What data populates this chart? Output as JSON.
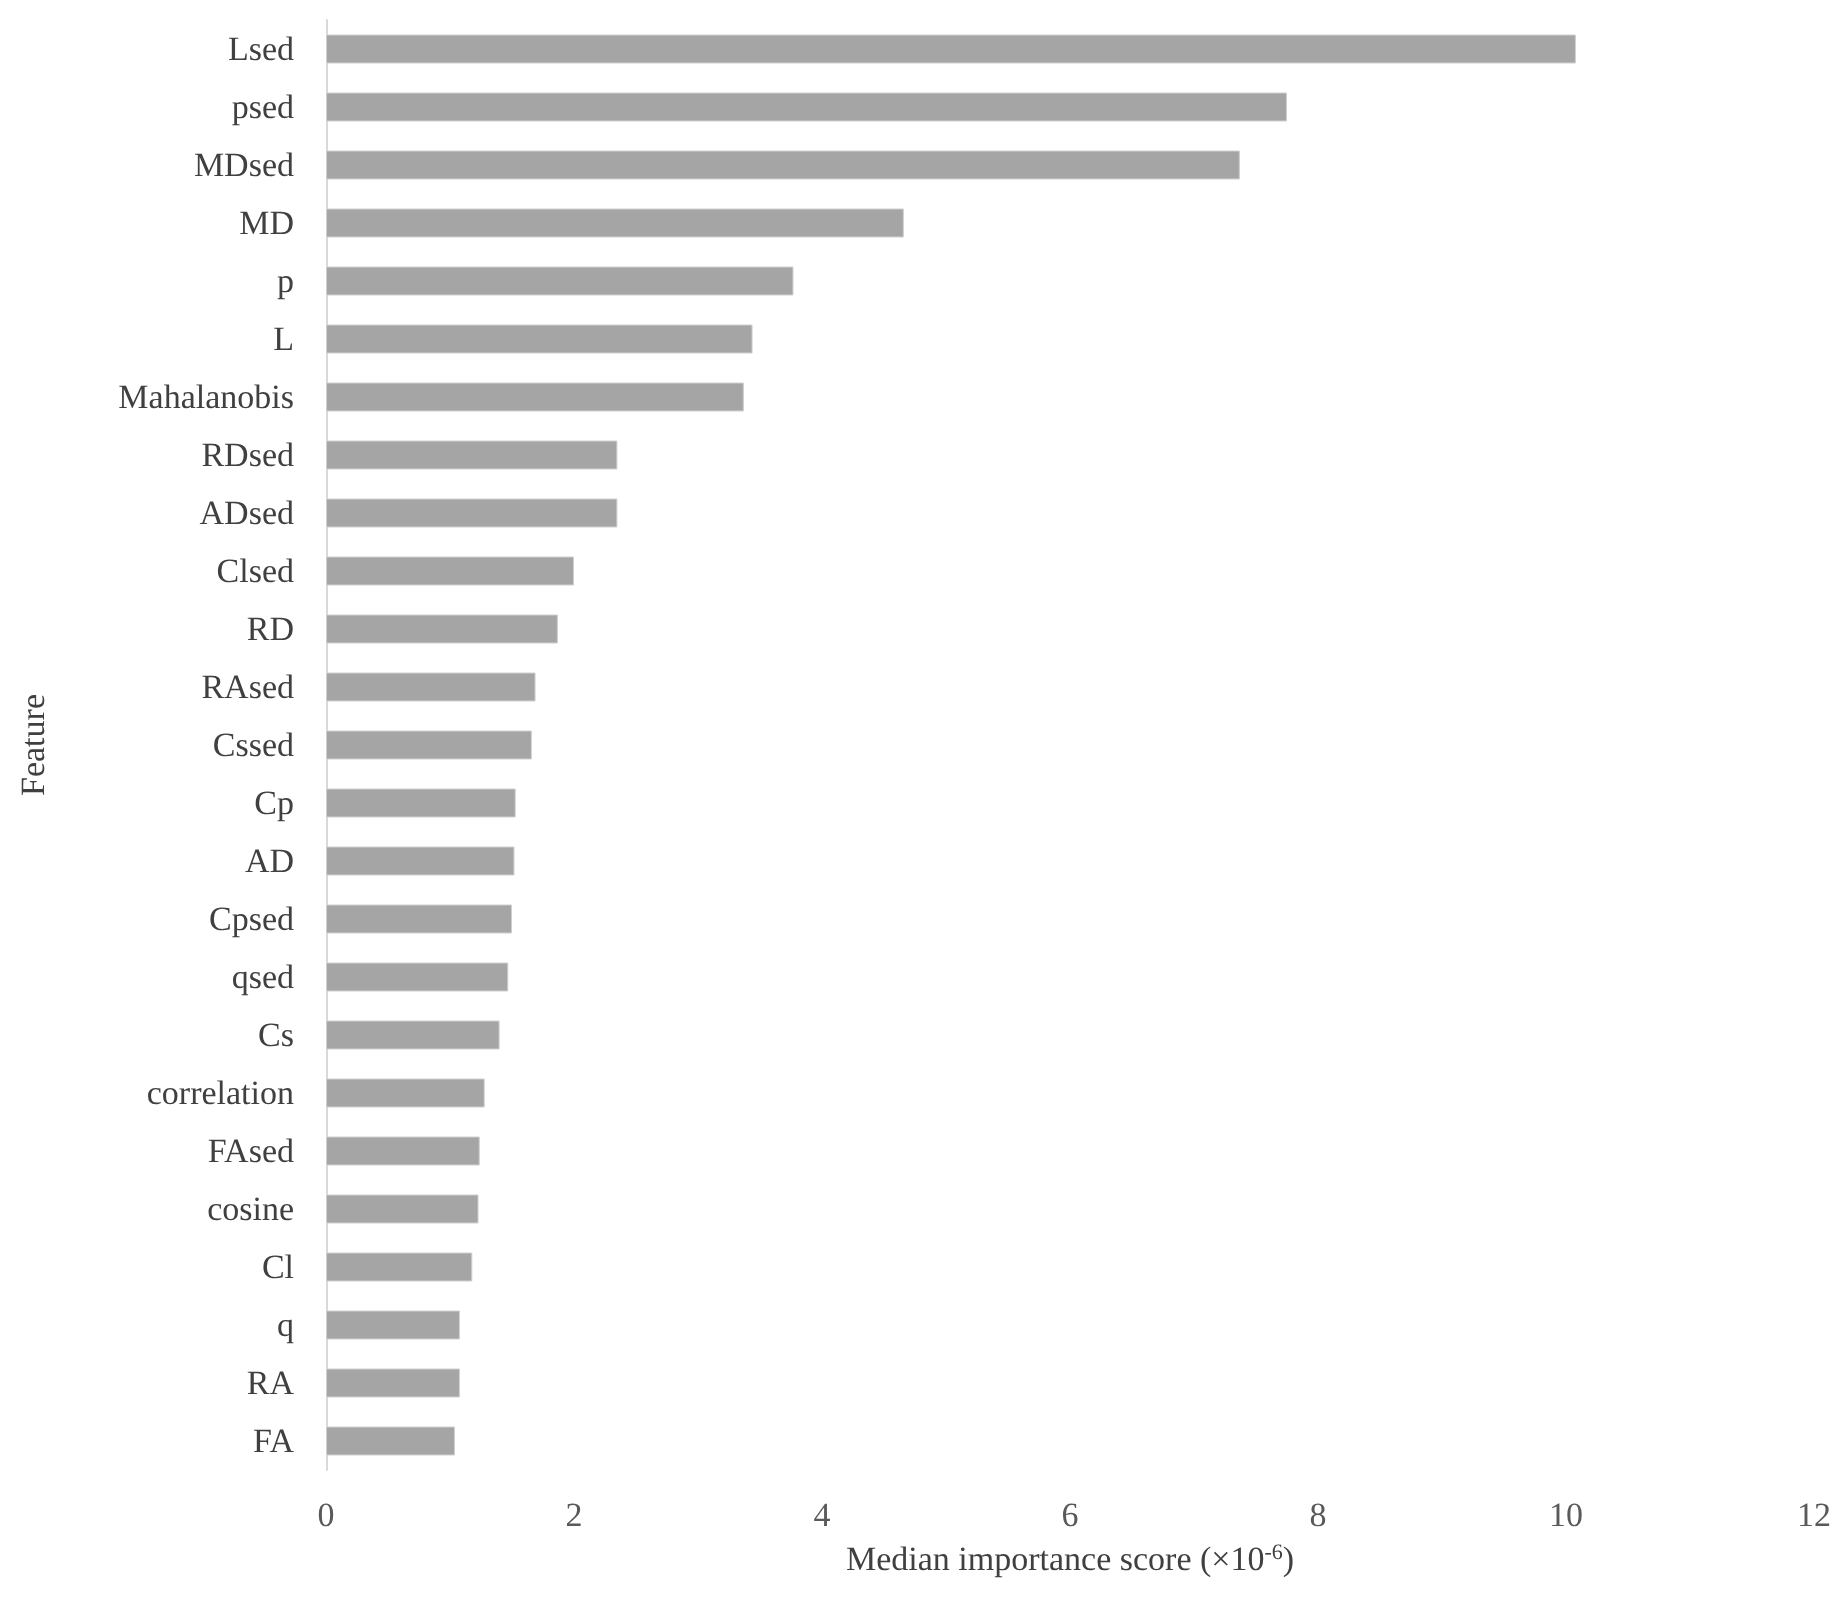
{
  "chart_data": {
    "type": "bar",
    "orientation": "horizontal",
    "xlabel": "Median importance score (×10$^{-6}$)",
    "ylabel": "Feature",
    "categories": [
      "Lsed",
      "psed",
      "MDsed",
      "MD",
      "p",
      "L",
      "Mahalanobis",
      "RDsed",
      "ADsed",
      "Clsed",
      "RD",
      "RAsed",
      "Cssed",
      "Cp",
      "AD",
      "Cpsed",
      "qsed",
      "Cs",
      "correlation",
      "FAsed",
      "cosine",
      "Cl",
      "q",
      "RA",
      "FA"
    ],
    "values": [
      10.08,
      7.75,
      7.37,
      4.66,
      3.77,
      3.44,
      3.37,
      2.35,
      2.35,
      2.0,
      1.87,
      1.69,
      1.66,
      1.53,
      1.52,
      1.5,
      1.47,
      1.4,
      1.28,
      1.24,
      1.23,
      1.18,
      1.08,
      1.08,
      1.04
    ],
    "color": "#a5a5a5",
    "xlim": [
      0,
      12
    ],
    "xticks": [
      0,
      2,
      4,
      6,
      8,
      10,
      12
    ]
  }
}
